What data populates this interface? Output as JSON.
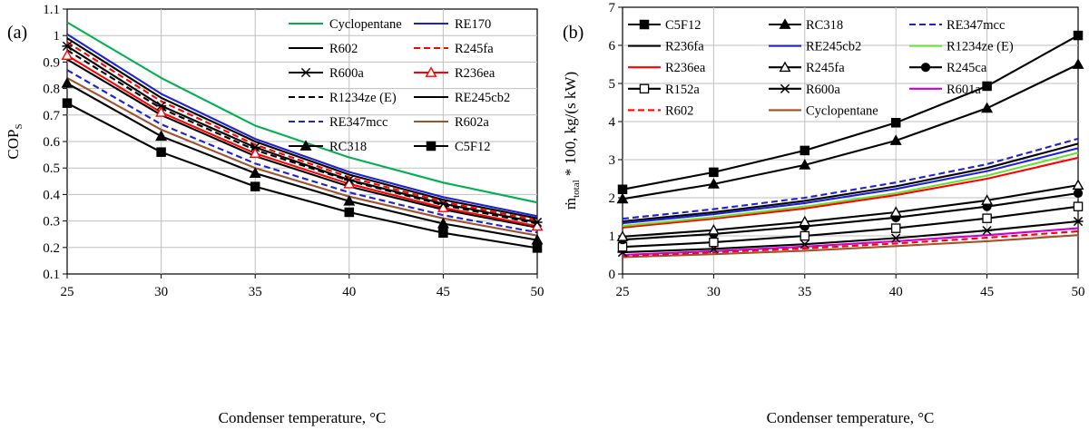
{
  "chart_data": [
    {
      "type": "line",
      "panel_label": "(a)",
      "title": "",
      "xlabel": "Condenser temperature, °C",
      "ylabel_main": "COP",
      "ylabel_sub": "S",
      "xlim": [
        25,
        50
      ],
      "ylim": [
        0.1,
        1.1
      ],
      "xticks": [
        "25",
        "30",
        "35",
        "40",
        "45",
        "50"
      ],
      "yticks": [
        "0.1",
        "0.2",
        "0.3",
        "0.4",
        "0.5",
        "0.6",
        "0.7",
        "0.8",
        "0.9",
        "1",
        "1.1"
      ],
      "grid": true,
      "legend_position": "top-right",
      "x": [
        25,
        30,
        35,
        40,
        45,
        50
      ],
      "series": [
        {
          "name": "Cyclopentane",
          "color": "#00b050",
          "dash": "solid",
          "marker": "none",
          "values": [
            1.05,
            0.84,
            0.66,
            0.54,
            0.445,
            0.37
          ]
        },
        {
          "name": "RE170",
          "color": "#1f1fd6",
          "dash": "solid",
          "marker": "none",
          "values": [
            1.005,
            0.78,
            0.61,
            0.485,
            0.39,
            0.318
          ]
        },
        {
          "name": "R602",
          "color": "#000000",
          "dash": "solid",
          "marker": "none",
          "values": [
            0.99,
            0.765,
            0.6,
            0.475,
            0.38,
            0.31
          ]
        },
        {
          "name": "R245fa",
          "color": "#ff0000",
          "dash": "dashed",
          "marker": "none",
          "values": [
            0.975,
            0.752,
            0.588,
            0.465,
            0.372,
            0.302
          ]
        },
        {
          "name": "R600a",
          "color": "#000000",
          "dash": "solid",
          "marker": "star",
          "values": [
            0.96,
            0.735,
            0.578,
            0.455,
            0.365,
            0.295
          ]
        },
        {
          "name": "R236ea",
          "color": "#ff0000",
          "dash": "solid",
          "marker": "triangle-open",
          "values": [
            0.925,
            0.71,
            0.555,
            0.44,
            0.35,
            0.28
          ]
        },
        {
          "name": "R1234ze (E)",
          "color": "#000000",
          "dash": "dashed",
          "marker": "none",
          "values": [
            0.945,
            0.725,
            0.568,
            0.452,
            0.36,
            0.29
          ]
        },
        {
          "name": "RE245cb2",
          "color": "#000000",
          "dash": "solid",
          "marker": "none",
          "values": [
            0.91,
            0.7,
            0.545,
            0.43,
            0.343,
            0.275
          ]
        },
        {
          "name": "RE347mcc",
          "color": "#1f1fd6",
          "dash": "dashed",
          "marker": "none",
          "values": [
            0.87,
            0.665,
            0.517,
            0.408,
            0.322,
            0.257
          ]
        },
        {
          "name": "R602a",
          "color": "#a0522d",
          "dash": "solid",
          "marker": "none",
          "values": [
            0.84,
            0.645,
            0.5,
            0.392,
            0.31,
            0.245
          ]
        },
        {
          "name": "RC318",
          "color": "#000000",
          "dash": "solid",
          "marker": "triangle-filled",
          "values": [
            0.82,
            0.62,
            0.48,
            0.375,
            0.29,
            0.228
          ]
        },
        {
          "name": "C5F12",
          "color": "#000000",
          "dash": "solid",
          "marker": "square-filled",
          "values": [
            0.745,
            0.56,
            0.43,
            0.333,
            0.255,
            0.198
          ]
        }
      ]
    },
    {
      "type": "line",
      "panel_label": "(b)",
      "title": "",
      "xlabel": "Condenser temperature, °C",
      "ylabel_main": "ṁ",
      "ylabel_sub": "total",
      "ylabel_rest": " * 100, kg/(s kW)",
      "xlim": [
        25,
        50
      ],
      "ylim": [
        0,
        7
      ],
      "xticks": [
        "25",
        "30",
        "35",
        "40",
        "45",
        "50"
      ],
      "yticks": [
        "0",
        "1",
        "2",
        "3",
        "4",
        "5",
        "6",
        "7"
      ],
      "grid": true,
      "legend_position": "top",
      "x": [
        25,
        30,
        35,
        40,
        45,
        50
      ],
      "series": [
        {
          "name": "C5F12",
          "color": "#000000",
          "dash": "solid",
          "marker": "square-filled",
          "values": [
            2.22,
            2.67,
            3.24,
            3.97,
            4.93,
            6.26
          ]
        },
        {
          "name": "RC318",
          "color": "#000000",
          "dash": "solid",
          "marker": "triangle-filled",
          "values": [
            1.97,
            2.36,
            2.86,
            3.5,
            4.35,
            5.5
          ]
        },
        {
          "name": "RE347mcc",
          "color": "#1f1fd6",
          "dash": "dashed",
          "marker": "none",
          "values": [
            1.45,
            1.7,
            2.0,
            2.4,
            2.88,
            3.55
          ]
        },
        {
          "name": "R236fa",
          "color": "#000000",
          "dash": "solid",
          "marker": "none",
          "values": [
            1.38,
            1.62,
            1.92,
            2.3,
            2.78,
            3.42
          ]
        },
        {
          "name": "RE245cb2",
          "color": "#1f1fd6",
          "dash": "solid",
          "marker": "none",
          "values": [
            1.33,
            1.57,
            1.86,
            2.23,
            2.7,
            3.3
          ]
        },
        {
          "name": "R1234ze (E)",
          "color": "#66e033",
          "dash": "solid",
          "marker": "none",
          "values": [
            1.26,
            1.49,
            1.77,
            2.12,
            2.58,
            3.18
          ]
        },
        {
          "name": "R236ea",
          "color": "#ff0000",
          "dash": "solid",
          "marker": "none",
          "values": [
            1.22,
            1.45,
            1.72,
            2.07,
            2.5,
            3.05
          ]
        },
        {
          "name": "R245fa",
          "color": "#000000",
          "dash": "solid",
          "marker": "triangle-open",
          "values": [
            0.98,
            1.15,
            1.37,
            1.62,
            1.93,
            2.33
          ]
        },
        {
          "name": "R245ca",
          "color": "#000000",
          "dash": "solid",
          "marker": "circle-filled",
          "values": [
            0.9,
            1.05,
            1.25,
            1.48,
            1.77,
            2.12
          ]
        },
        {
          "name": "R152a",
          "color": "#000000",
          "dash": "solid",
          "marker": "square-open",
          "values": [
            0.71,
            0.83,
            1.0,
            1.2,
            1.46,
            1.77
          ]
        },
        {
          "name": "R600a",
          "color": "#000000",
          "dash": "solid",
          "marker": "star",
          "values": [
            0.57,
            0.66,
            0.78,
            0.94,
            1.14,
            1.38
          ]
        },
        {
          "name": "R601a",
          "color": "#cc00cc",
          "dash": "solid",
          "marker": "none",
          "values": [
            0.5,
            0.6,
            0.72,
            0.86,
            1.02,
            1.2
          ]
        },
        {
          "name": "R602",
          "color": "#ff0000",
          "dash": "dashed",
          "marker": "none",
          "values": [
            0.47,
            0.57,
            0.67,
            0.8,
            0.95,
            1.12
          ]
        },
        {
          "name": "Cyclopentane",
          "color": "#a0522d",
          "dash": "solid",
          "marker": "none",
          "values": [
            0.44,
            0.52,
            0.61,
            0.73,
            0.86,
            1.02
          ]
        }
      ]
    }
  ]
}
